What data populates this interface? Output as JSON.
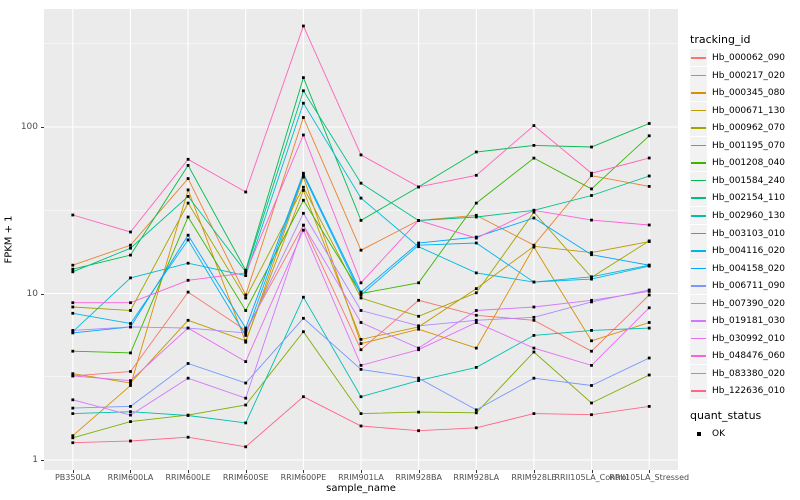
{
  "figure": {
    "panel_bg": "#EBEBEB",
    "grid_color": "#FFFFFF",
    "tick_text_color": "#4D4D4D",
    "marker_color": "#000000"
  },
  "axes": {
    "x": {
      "title": "sample_name"
    },
    "y": {
      "title": "FPKM + 1",
      "ticks": [
        "1",
        "10",
        "100"
      ],
      "scale": "log10"
    }
  },
  "legend": {
    "tracking_title": "tracking_id",
    "quant_title": "quant_status",
    "quant_items": [
      {
        "label": "OK",
        "glyph": "black-square-point-icon"
      }
    ]
  },
  "chart_data": {
    "type": "line",
    "title": "",
    "xlabel": "sample_name",
    "ylabel": "FPKM + 1",
    "y_scale": "log10",
    "ylim": [
      1,
      450
    ],
    "grid": true,
    "legend_position": "right",
    "marker": "small black square (quant_status OK)",
    "x_categories": [
      "PB350LA",
      "RRIM600LA",
      "RRIM600LE",
      "RRIM600SE",
      "RRIM600PE",
      "RRIM901LA",
      "RRIM928BA",
      "RRIM928LA",
      "RRIM928LE",
      "RRII105LA_Control",
      "RRII105LA_Stressed"
    ],
    "series": [
      {
        "name": "Hb_000062_090",
        "color": "#F8766D",
        "values": [
          3.2,
          3.4,
          10.2,
          6.0,
          25.7,
          4.6,
          9.1,
          7.4,
          6.9,
          4.5,
          9.8
        ]
      },
      {
        "name": "Hb_000217_020",
        "color": "#EA8331",
        "values": [
          14.8,
          19.5,
          49.0,
          9.8,
          114.0,
          18.2,
          27.5,
          29.5,
          19.5,
          51.0,
          44.0
        ]
      },
      {
        "name": "Hb_000345_080",
        "color": "#D89000",
        "values": [
          1.4,
          2.8,
          41.9,
          5.1,
          50.0,
          5.0,
          6.1,
          4.7,
          19.0,
          5.2,
          6.7
        ]
      },
      {
        "name": "Hb_000671_130",
        "color": "#C09B00",
        "values": [
          3.3,
          2.9,
          6.9,
          5.2,
          41.6,
          5.3,
          6.3,
          10.7,
          19.2,
          17.6,
          20.5
        ]
      },
      {
        "name": "Hb_000962_070",
        "color": "#A3A500",
        "values": [
          8.3,
          7.9,
          34.9,
          9.4,
          43.5,
          9.4,
          7.3,
          10.1,
          30.8,
          12.5,
          20.7
        ]
      },
      {
        "name": "Hb_001195_070",
        "color": "#7CAE00",
        "values": [
          1.36,
          1.7,
          1.86,
          2.14,
          5.9,
          1.9,
          1.94,
          1.92,
          4.45,
          2.2,
          3.24
        ]
      },
      {
        "name": "Hb_001208_040",
        "color": "#39B600",
        "values": [
          4.5,
          4.4,
          28.8,
          7.9,
          36.3,
          10.0,
          11.6,
          34.9,
          65.0,
          42.5,
          88.6
        ]
      },
      {
        "name": "Hb_001584_240",
        "color": "#00BB4E",
        "values": [
          14.0,
          17.0,
          58.8,
          13.8,
          198.0,
          27.5,
          43.7,
          70.8,
          77.5,
          75.8,
          105.0
        ]
      },
      {
        "name": "Hb_002154_110",
        "color": "#00C087",
        "values": [
          13.5,
          18.7,
          38.3,
          13.5,
          165.0,
          46.0,
          27.4,
          28.8,
          31.6,
          38.8,
          50.8
        ]
      },
      {
        "name": "Hb_002960_130",
        "color": "#00C0AF",
        "values": [
          1.9,
          1.95,
          1.85,
          1.67,
          9.5,
          2.4,
          3.0,
          3.6,
          5.6,
          6.0,
          6.2
        ]
      },
      {
        "name": "Hb_003103_010",
        "color": "#00BCD8",
        "values": [
          5.9,
          12.4,
          15.2,
          12.8,
          139.0,
          37.4,
          19.1,
          13.3,
          11.7,
          12.6,
          14.8
        ]
      },
      {
        "name": "Hb_004116_020",
        "color": "#00B4F0",
        "values": [
          7.6,
          6.6,
          21.0,
          5.6,
          51.5,
          9.8,
          19.5,
          20.1,
          11.7,
          12.2,
          14.6
        ]
      },
      {
        "name": "Hb_004158_020",
        "color": "#00A5FF",
        "values": [
          5.8,
          6.3,
          22.4,
          6.2,
          52.8,
          10.2,
          20.1,
          21.8,
          28.4,
          17.1,
          14.8
        ]
      },
      {
        "name": "Hb_006711_090",
        "color": "#7997FF",
        "values": [
          2.05,
          2.1,
          3.8,
          2.9,
          7.1,
          3.5,
          3.1,
          2.0,
          3.1,
          2.8,
          4.1
        ]
      },
      {
        "name": "Hb_007390_020",
        "color": "#AE87FF",
        "values": [
          6.0,
          6.3,
          6.2,
          5.8,
          30.3,
          7.9,
          6.4,
          6.9,
          7.2,
          8.9,
          10.5
        ]
      },
      {
        "name": "Hb_019181_030",
        "color": "#D277FF",
        "values": [
          2.3,
          1.86,
          3.1,
          2.35,
          25.7,
          6.7,
          4.7,
          7.9,
          8.3,
          9.1,
          10.3
        ]
      },
      {
        "name": "Hb_030992_010",
        "color": "#E76BF3",
        "values": [
          3.2,
          3.0,
          6.2,
          3.9,
          24.0,
          3.7,
          4.6,
          6.7,
          4.7,
          3.7,
          8.2
        ]
      },
      {
        "name": "Hb_048476_060",
        "color": "#FB61D7",
        "values": [
          8.8,
          8.8,
          12.0,
          13.3,
          89.5,
          11.6,
          27.5,
          21.5,
          31.6,
          27.6,
          25.8
        ]
      },
      {
        "name": "Hb_083380_020",
        "color": "#FF62BC",
        "values": [
          29.6,
          23.4,
          64.0,
          40.7,
          404.0,
          68.0,
          43.7,
          51.3,
          102.0,
          52.8,
          65.1
        ]
      },
      {
        "name": "Hb_122636_010",
        "color": "#FF6687",
        "values": [
          1.27,
          1.3,
          1.37,
          1.2,
          2.4,
          1.6,
          1.5,
          1.56,
          1.9,
          1.87,
          2.1
        ]
      }
    ]
  }
}
